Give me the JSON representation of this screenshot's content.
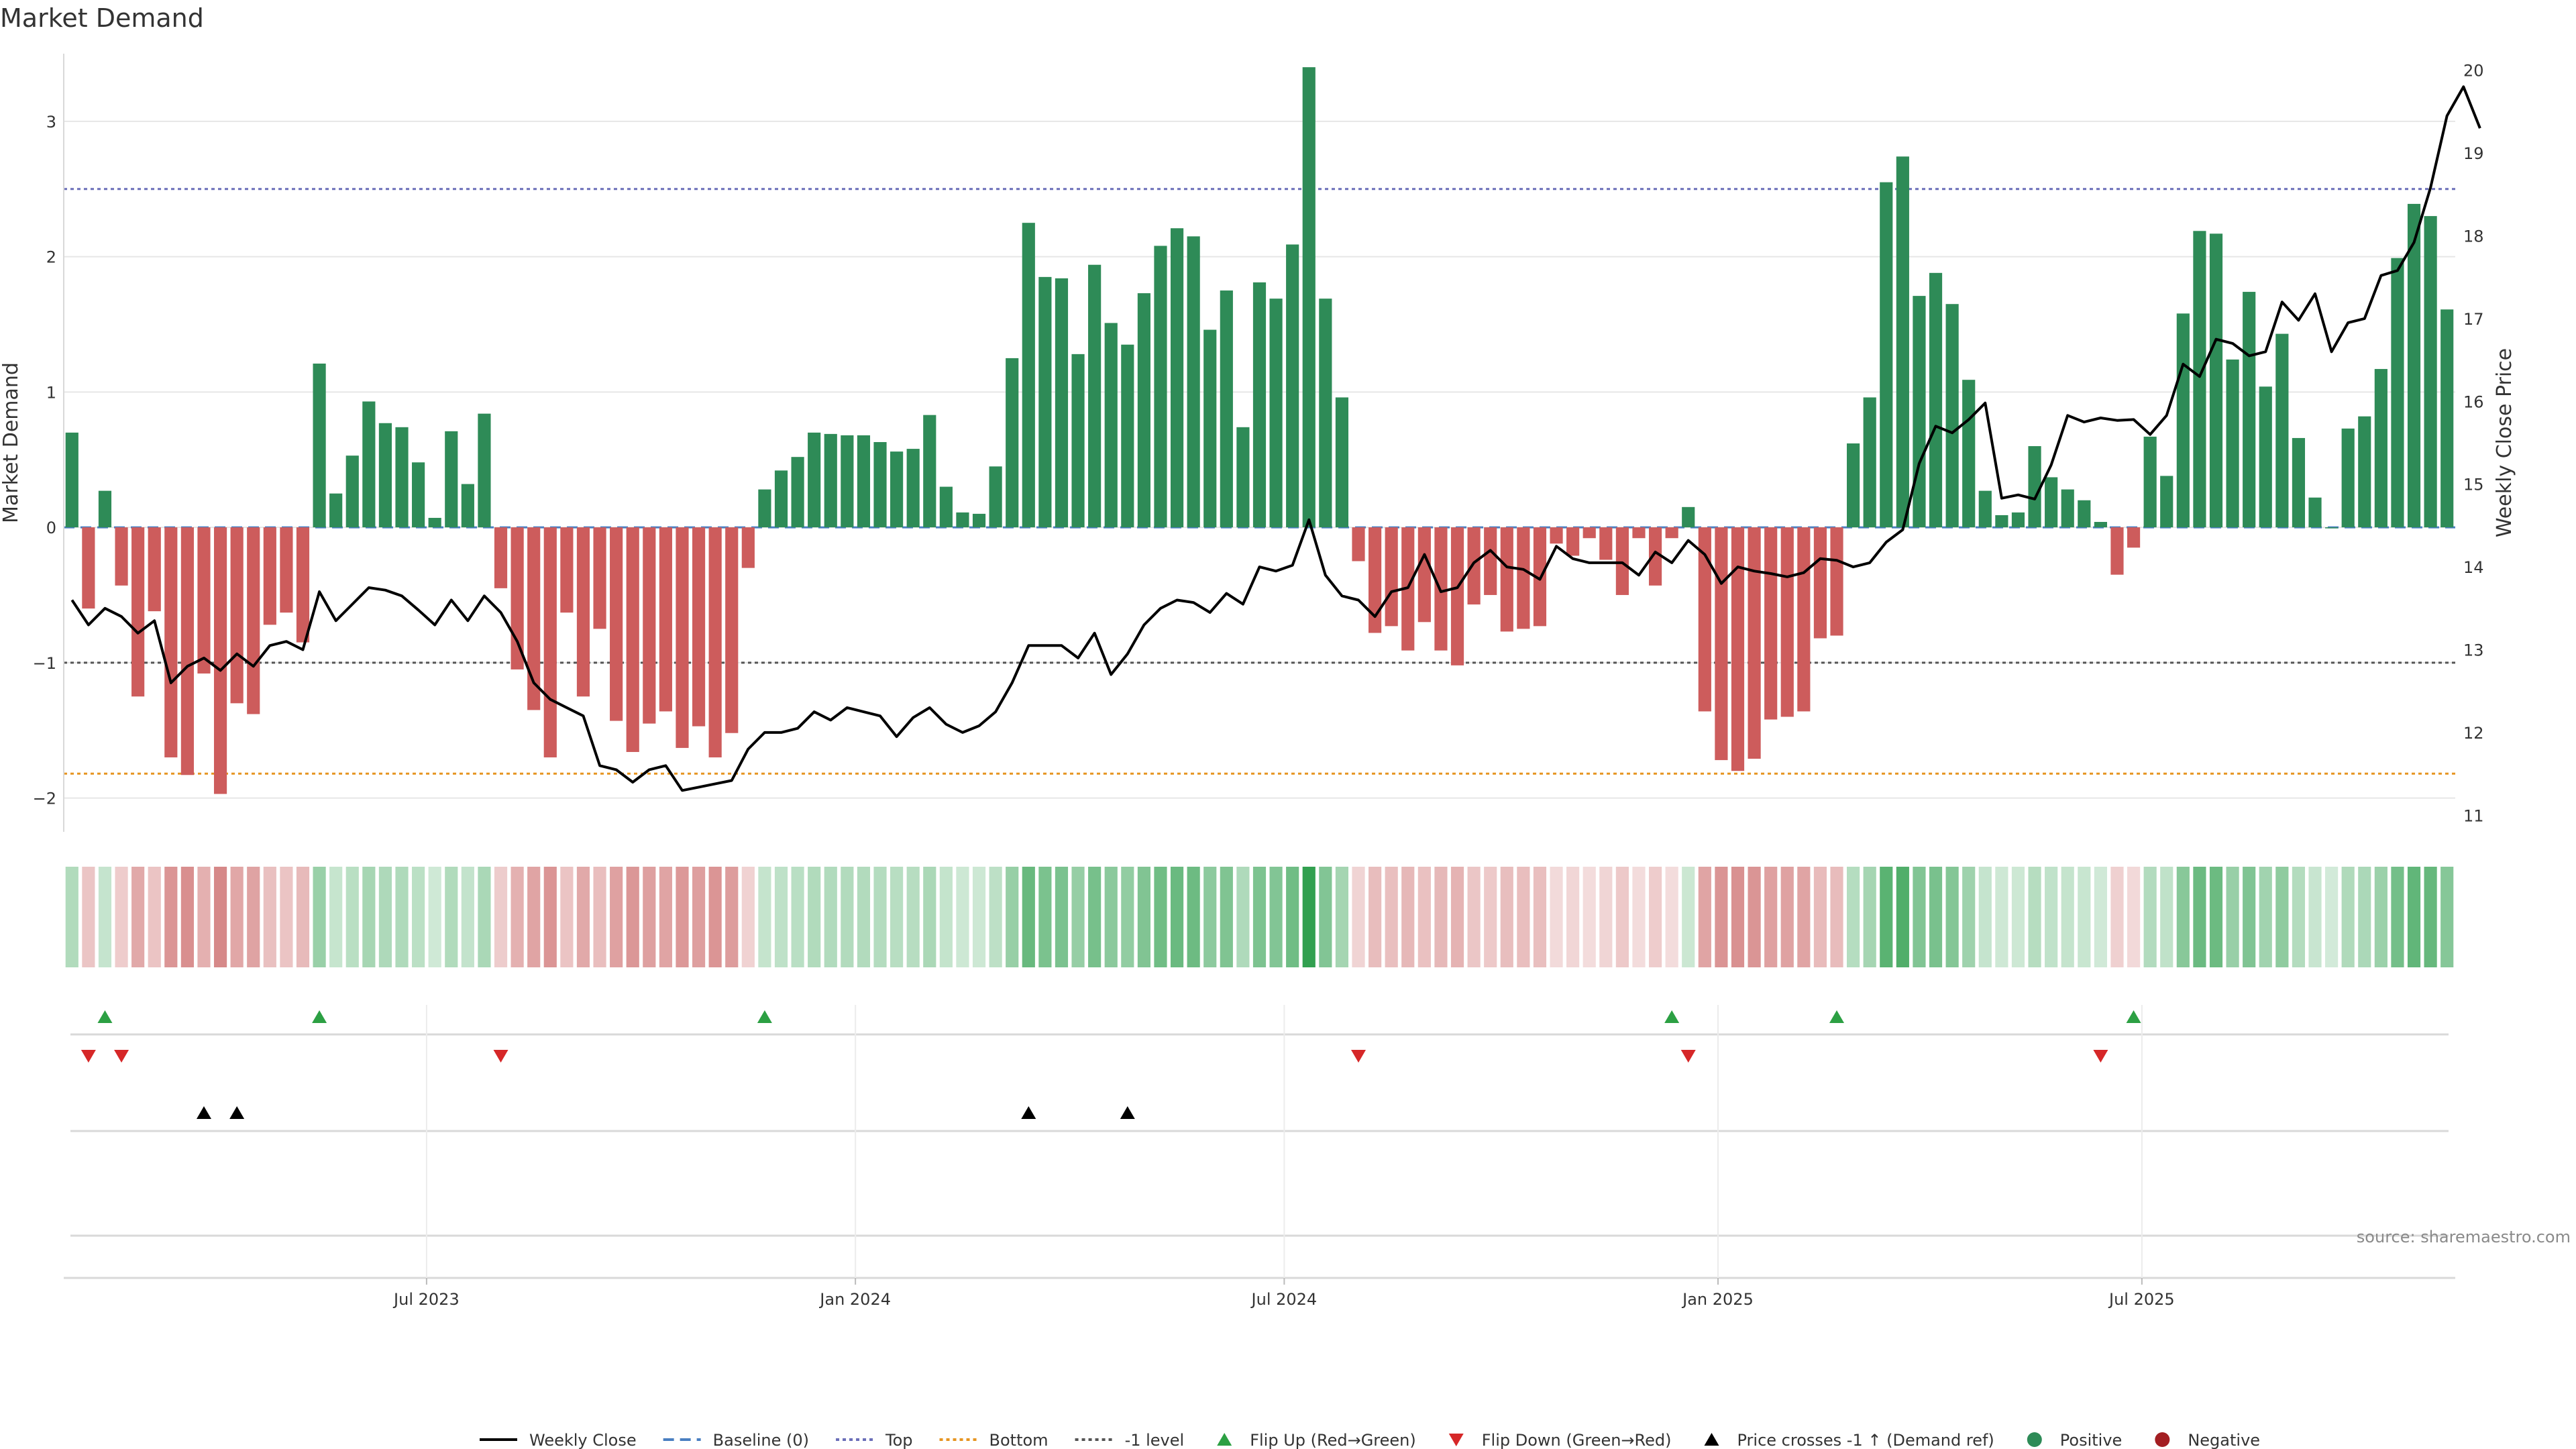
{
  "chart_data": {
    "type": "bar",
    "title": "Market Demand",
    "ylabel_left": "Market Demand",
    "ylabel_right": "Weekly Close Price",
    "left_ylim": [
      -2.25,
      3.5
    ],
    "right_ylim": [
      10.8,
      20.2
    ],
    "left_ticks": [
      3,
      2,
      1,
      0,
      -1,
      -2
    ],
    "left_tick_labels": [
      "3",
      "2",
      "1",
      "0",
      "−1",
      "−2"
    ],
    "right_ticks": [
      20,
      19,
      18,
      17,
      16,
      15,
      14,
      13,
      12,
      11
    ],
    "right_tick_labels": [
      "20",
      "19",
      "18",
      "17",
      "16",
      "15",
      "14",
      "13",
      "12",
      "11"
    ],
    "x_ticks": [
      {
        "label": "Jul 2023",
        "week": 22
      },
      {
        "label": "Jan 2024",
        "week": 48
      },
      {
        "label": "Jul 2024",
        "week": 74
      },
      {
        "label": "Jan 2025",
        "week": 100.3
      },
      {
        "label": "Jul 2025",
        "week": 126
      }
    ],
    "reference_lines": {
      "top": 2.5,
      "bottom": -1.82,
      "minus_one": -1.0,
      "baseline": 0
    },
    "demand_values": [
      0.7,
      -0.6,
      0.27,
      -0.43,
      -1.25,
      -0.62,
      -1.7,
      -1.83,
      -1.08,
      -1.97,
      -1.3,
      -1.38,
      -0.72,
      -0.63,
      -0.85,
      1.21,
      0.25,
      0.53,
      0.93,
      0.77,
      0.74,
      0.48,
      0.07,
      0.71,
      0.32,
      0.84,
      -0.45,
      -1.05,
      -1.35,
      -1.7,
      -0.63,
      -1.25,
      -0.75,
      -1.43,
      -1.66,
      -1.45,
      -1.36,
      -1.63,
      -1.47,
      -1.7,
      -1.52,
      -0.3,
      0.28,
      0.42,
      0.52,
      0.7,
      0.69,
      0.68,
      0.68,
      0.63,
      0.56,
      0.58,
      0.83,
      0.3,
      0.11,
      0.1,
      0.45,
      1.25,
      2.25,
      1.85,
      1.84,
      1.28,
      1.94,
      1.51,
      1.35,
      1.73,
      2.08,
      2.21,
      2.15,
      1.46,
      1.75,
      0.74,
      1.81,
      1.69,
      2.09,
      3.4,
      1.69,
      0.96,
      -0.25,
      -0.78,
      -0.73,
      -0.91,
      -0.7,
      -0.91,
      -1.02,
      -0.57,
      -0.5,
      -0.77,
      -0.75,
      -0.73,
      -0.12,
      -0.21,
      -0.08,
      -0.24,
      -0.5,
      -0.08,
      -0.43,
      -0.08,
      0.15,
      -1.36,
      -1.72,
      -1.8,
      -1.71,
      -1.42,
      -1.4,
      -1.36,
      -0.82,
      -0.8,
      0.62,
      0.96,
      2.55,
      2.74,
      1.71,
      1.88,
      1.65,
      1.09,
      0.27,
      0.09,
      0.11,
      0.6,
      0.37,
      0.28,
      0.2,
      0.04,
      -0.35,
      -0.15,
      0.67,
      0.38,
      1.58,
      2.19,
      2.17,
      1.24,
      1.74,
      1.04,
      1.43,
      0.66,
      0.22,
      0.0,
      0.73,
      0.82,
      1.17,
      1.99,
      2.39,
      2.3,
      1.61
    ],
    "weekly_close": [
      13.6,
      13.3,
      13.5,
      13.4,
      13.2,
      13.35,
      12.6,
      12.8,
      12.9,
      12.75,
      12.95,
      12.8,
      13.05,
      13.1,
      13.0,
      13.7,
      13.35,
      13.55,
      13.75,
      13.72,
      13.65,
      13.48,
      13.3,
      13.6,
      13.35,
      13.65,
      13.45,
      13.1,
      12.6,
      12.4,
      12.3,
      12.2,
      11.6,
      11.55,
      11.4,
      11.55,
      11.6,
      11.3,
      11.34,
      11.38,
      11.42,
      11.8,
      12.0,
      12.0,
      12.05,
      12.25,
      12.15,
      12.3,
      12.25,
      12.2,
      11.95,
      12.18,
      12.3,
      12.1,
      12.0,
      12.08,
      12.25,
      12.6,
      13.05,
      13.05,
      13.05,
      12.9,
      13.2,
      12.7,
      12.95,
      13.3,
      13.5,
      13.6,
      13.57,
      13.45,
      13.68,
      13.55,
      14.0,
      13.95,
      14.02,
      14.57,
      13.9,
      13.65,
      13.6,
      13.4,
      13.7,
      13.75,
      14.15,
      13.7,
      13.75,
      14.05,
      14.2,
      14.0,
      13.97,
      13.85,
      14.25,
      14.1,
      14.05,
      14.05,
      14.05,
      13.9,
      14.18,
      14.05,
      14.32,
      14.15,
      13.8,
      14.0,
      13.95,
      13.92,
      13.88,
      13.93,
      14.1,
      14.08,
      14.0,
      14.05,
      14.3,
      14.45,
      15.25,
      15.7,
      15.62,
      15.78,
      15.98,
      14.83,
      14.87,
      14.82,
      15.23,
      15.83,
      15.75,
      15.8,
      15.77,
      15.78,
      15.6,
      15.83,
      16.45,
      16.3,
      16.75,
      16.7,
      16.55,
      16.6,
      17.2,
      16.98,
      17.3,
      16.6,
      16.95,
      17.0,
      17.52,
      17.58,
      17.92,
      18.58,
      19.45,
      19.8,
      19.3
    ],
    "bottom_markers": {
      "flip_up_weeks": [
        2,
        15,
        42,
        97,
        107,
        125
      ],
      "flip_down_weeks": [
        1,
        3,
        26,
        78,
        98,
        123
      ],
      "price_cross_weeks": [
        8,
        10,
        58,
        64
      ]
    },
    "source_text": "source: sharemaestro.com",
    "legend": [
      {
        "label": "Weekly Close",
        "kind": "line-solid",
        "color": "#000000"
      },
      {
        "label": "Baseline (0)",
        "kind": "line-dash",
        "color": "#4a7fc1"
      },
      {
        "label": "Top",
        "kind": "line-dot",
        "color": "#6b6fb8"
      },
      {
        "label": "Bottom",
        "kind": "line-dot",
        "color": "#e69522"
      },
      {
        "label": "-1 level",
        "kind": "line-dot",
        "color": "#555555"
      },
      {
        "label": "Flip Up (Red→Green)",
        "kind": "tri-up",
        "color": "#2ca043"
      },
      {
        "label": "Flip Down (Green→Red)",
        "kind": "tri-down",
        "color": "#d62728"
      },
      {
        "label": "Price crosses -1 ↑ (Demand ref)",
        "kind": "tri-up",
        "color": "#000000"
      },
      {
        "label": "Positive",
        "kind": "dot",
        "color": "#2e8b57"
      },
      {
        "label": "Negative",
        "kind": "dot",
        "color": "#a31e22"
      }
    ],
    "colors": {
      "positive_bar": "#2e8b57",
      "negative_bar": "#cd5c5c",
      "price_line": "#000000",
      "grid": "#e6e6e6",
      "top_line": "#6b6fb8",
      "bottom_line": "#e69522",
      "minus_one_line": "#555555",
      "baseline": "#4a7fc1",
      "flip_up": "#2ca043",
      "flip_down": "#d62728",
      "price_cross": "#000000"
    }
  }
}
